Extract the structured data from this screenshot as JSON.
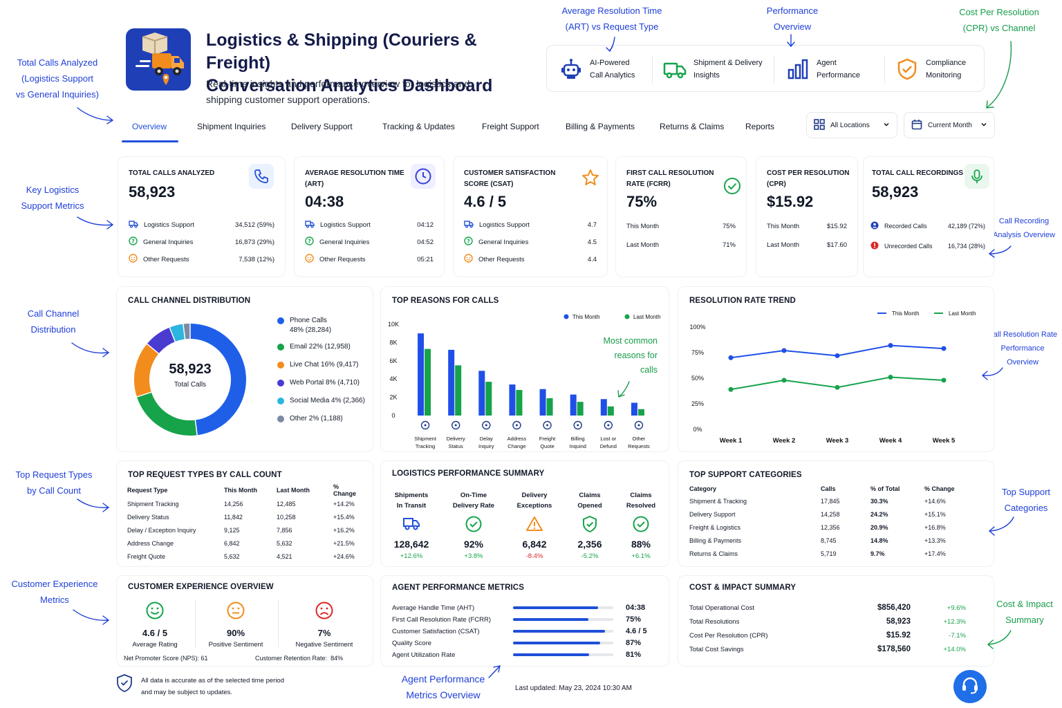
{
  "header": {
    "title_line1": "Logistics & Shipping (Couriers & Freight)",
    "title_line2": "Conversation Analytics Dashboard",
    "subtitle": "Real-time insights and performance overview for logistics and shipping customer support operations."
  },
  "features": [
    {
      "icon": "robot-icon",
      "line1": "AI-Powered",
      "line2": "Call Analytics"
    },
    {
      "icon": "truck-icon",
      "line1": "Shipment & Delivery",
      "line2": "Insights"
    },
    {
      "icon": "bar-chart-icon",
      "line1": "Agent",
      "line2": "Performance"
    },
    {
      "icon": "shield-check-icon",
      "line1": "Compliance",
      "line2": "Monitoring"
    }
  ],
  "annotations": {
    "art": [
      "Average Resolution Time",
      "(ART) vs Request Type"
    ],
    "perf": [
      "Performance",
      "Overview"
    ],
    "cpr": [
      "Cost Per Resolution",
      "(CPR) vs Channel"
    ],
    "total_calls": [
      "Total Calls Analyzed",
      "(Logistics Support",
      "vs General Inquiries)"
    ],
    "key_metrics": [
      "Key Logistics",
      "Support Metrics"
    ],
    "recording": [
      "Call Recording",
      "Analysis Overview"
    ],
    "channel": [
      "Call Channel",
      "Distribution"
    ],
    "rrate": [
      "Call Resolution Rate",
      "Performance",
      "Overview"
    ],
    "request_types": [
      "Top Request Types",
      "by Call Count"
    ],
    "support_cats": [
      "Top Support",
      "Categories"
    ],
    "cx": [
      "Customer Experience",
      "Metrics"
    ],
    "cost": [
      "Cost & Impact",
      "Summary"
    ],
    "agent": [
      "Agent Performance",
      "Metrics Overview"
    ],
    "common": [
      "Most common",
      "reasons for",
      "calls"
    ]
  },
  "tabs": [
    "Overview",
    "Shipment Inquiries",
    "Delivery Support",
    "Tracking & Updates",
    "Freight Support",
    "Billing & Payments",
    "Returns & Claims",
    "Reports"
  ],
  "filters": {
    "location": "All Locations",
    "period": "Current Month"
  },
  "kpis": {
    "total_calls": {
      "label": "TOTAL CALLS ANALYZED",
      "value": "58,923",
      "rows": [
        {
          "name": "Logistics Support",
          "value": "34,512 (59%)"
        },
        {
          "name": "General Inquiries",
          "value": "16,873 (29%)"
        },
        {
          "name": "Other Requests",
          "value": "7,538 (12%)"
        }
      ]
    },
    "art": {
      "label": "AVERAGE RESOLUTION TIME (ART)",
      "value": "04:38",
      "rows": [
        {
          "name": "Logistics Support",
          "value": "04:12"
        },
        {
          "name": "General Inquiries",
          "value": "04:52"
        },
        {
          "name": "Other Requests",
          "value": "05:21"
        }
      ]
    },
    "csat": {
      "label": "CUSTOMER SATISFACTION SCORE (CSAT)",
      "value": "4.6 / 5",
      "rows": [
        {
          "name": "Logistics Support",
          "value": "4.7"
        },
        {
          "name": "General Inquiries",
          "value": "4.5"
        },
        {
          "name": "Other Requests",
          "value": "4.4"
        }
      ]
    },
    "fcr": {
      "label": "FIRST CALL RESOLUTION RATE (FCRR)",
      "value": "75%",
      "rows": [
        {
          "name": "This Month",
          "value": "75%"
        },
        {
          "name": "Last Month",
          "value": "71%"
        }
      ]
    },
    "cpr": {
      "label": "COST PER RESOLUTION (CPR)",
      "value": "$15.92",
      "rows": [
        {
          "name": "This Month",
          "value": "$15.92"
        },
        {
          "name": "Last Month",
          "value": "$17.60"
        }
      ]
    },
    "recordings": {
      "label": "TOTAL CALL RECORDINGS",
      "value": "58,923",
      "rows": [
        {
          "name": "Recorded Calls",
          "value": "42,189 (72%)"
        },
        {
          "name": "Unrecorded Calls",
          "value": "16,734 (28%)"
        }
      ]
    }
  },
  "channel": {
    "title": "CALL CHANNEL DISTRIBUTION",
    "center_value": "58,923",
    "center_label": "Total Calls",
    "legend": [
      {
        "line1": "Phone Calls",
        "line2": "48% (28,284)",
        "color": "#1f5fe8"
      },
      {
        "line1": "Email 22% (12,958)",
        "line2": "",
        "color": "#16a34a"
      },
      {
        "line1": "Live Chat 16% (9,417)",
        "line2": "",
        "color": "#f28c1c"
      },
      {
        "line1": "Web Portal 8% (4,710)",
        "line2": "",
        "color": "#4a3bd1"
      },
      {
        "line1": "Social Media 4% (2,366)",
        "line2": "",
        "color": "#2bb5e0"
      },
      {
        "line1": "Other 2% (1,188)",
        "line2": "",
        "color": "#7c8aa5"
      }
    ]
  },
  "reasons_title": "TOP REASONS FOR CALLS",
  "trend_title": "RESOLUTION RATE TREND",
  "request_types": {
    "title": "TOP REQUEST TYPES BY CALL COUNT",
    "headers": [
      "Request Type",
      "This Month",
      "Last Month",
      "% Change"
    ],
    "rows": [
      [
        "Shipment Tracking",
        "14,256",
        "12,485",
        "+14.2%"
      ],
      [
        "Delivery Status",
        "11,842",
        "10,258",
        "+15.4%"
      ],
      [
        "Delay / Exception Inquiry",
        "9,125",
        "7,856",
        "+16.2%"
      ],
      [
        "Address Change",
        "6,842",
        "5,632",
        "+21.5%"
      ],
      [
        "Freight Quote",
        "5,632",
        "4,521",
        "+24.6%"
      ]
    ]
  },
  "logistics": {
    "title": "LOGISTICS PERFORMANCE SUMMARY",
    "items": [
      {
        "l1": "Shipments",
        "l2": "In Transit",
        "icon": "truck-icon",
        "value": "128,642",
        "change": "+12.6%",
        "dir": "pos"
      },
      {
        "l1": "On-Time",
        "l2": "Delivery Rate",
        "icon": "check-circle-icon",
        "value": "92%",
        "change": "+3.8%",
        "dir": "pos"
      },
      {
        "l1": "Delivery",
        "l2": "Exceptions",
        "icon": "warning-icon",
        "value": "6,842",
        "change": "-8.4%",
        "dir": "neg"
      },
      {
        "l1": "Claims",
        "l2": "Opened",
        "icon": "shield-check-icon",
        "value": "2,356",
        "change": "-5.2%",
        "dir": "pos"
      },
      {
        "l1": "Claims",
        "l2": "Resolved",
        "icon": "check-circle-icon",
        "value": "88%",
        "change": "+6.1%",
        "dir": "pos"
      }
    ]
  },
  "support_cats": {
    "title": "TOP SUPPORT CATEGORIES",
    "headers": [
      "Category",
      "Calls",
      "% of Total",
      "% Change"
    ],
    "rows": [
      [
        "Shipment & Tracking",
        "17,845",
        "30.3%",
        "+14.6%"
      ],
      [
        "Delivery Support",
        "14,258",
        "24.2%",
        "+15.1%"
      ],
      [
        "Freight & Logistics",
        "12,356",
        "20.9%",
        "+16.8%"
      ],
      [
        "Billing & Payments",
        "8,745",
        "14.8%",
        "+13.3%"
      ],
      [
        "Returns & Claims",
        "5,719",
        "9.7%",
        "+17.4%"
      ]
    ]
  },
  "cx": {
    "title": "CUSTOMER EXPERIENCE OVERVIEW",
    "items": [
      {
        "icon": "smile-icon",
        "value": "4.6 / 5",
        "label": "Average Rating",
        "color": "#16a34a"
      },
      {
        "icon": "neutral-face-icon",
        "value": "90%",
        "label": "Positive Sentiment",
        "color": "#f28c1c"
      },
      {
        "icon": "sad-face-icon",
        "value": "7%",
        "label": "Negative Sentiment",
        "color": "#dc2626"
      }
    ],
    "nps_label": "Net Promoter Score (NPS):",
    "nps": "61",
    "retention_label": "Customer Retention Rate:",
    "retention": "84%"
  },
  "agent": {
    "title": "AGENT PERFORMANCE METRICS",
    "rows": [
      {
        "name": "Average Handle Time (AHT)",
        "value": "04:38",
        "level": 0.85
      },
      {
        "name": "First Call Resolution Rate (FCRR)",
        "value": "75%",
        "level": 0.75
      },
      {
        "name": "Customer Satisfaction (CSAT)",
        "value": "4.6 / 5",
        "level": 0.92
      },
      {
        "name": "Quality Score",
        "value": "87%",
        "level": 0.87
      },
      {
        "name": "Agent Utilization Rate",
        "value": "81%",
        "level": 0.76
      }
    ]
  },
  "cost": {
    "title": "COST & IMPACT SUMMARY",
    "rows": [
      {
        "name": "Total Operational Cost",
        "value": "$856,420",
        "change": "+9.6%",
        "dir": "pos"
      },
      {
        "name": "Total Resolutions",
        "value": "58,923",
        "change": "+12.3%",
        "dir": "pos"
      },
      {
        "name": "Cost Per Resolution (CPR)",
        "value": "$15.92",
        "change": "-7.1%",
        "dir": "pos"
      },
      {
        "name": "Total Cost Savings",
        "value": "$178,560",
        "change": "+14.0%",
        "dir": "pos"
      }
    ]
  },
  "footer": {
    "note_line1": "All data is accurate as of the selected time period",
    "note_line2": "and may be subject to updates.",
    "updated": "Last updated:  May 23, 2024 10:30 AM"
  },
  "chart_data": [
    {
      "type": "bar",
      "title": "TOP REASONS FOR CALLS",
      "categories": [
        "Shipment Tracking",
        "Delivery Status",
        "Delay Inquiry",
        "Address Change",
        "Freight Quote",
        "Billing Inquiry",
        "Lost or Defund",
        "Other Requests"
      ],
      "category_lines": [
        [
          "Shipment",
          "Tracking"
        ],
        [
          "Delivery",
          "Status"
        ],
        [
          "Delay",
          "Inquiry"
        ],
        [
          "Address",
          "Change"
        ],
        [
          "Freight",
          "Quote"
        ],
        [
          "Billing",
          "Inquind"
        ],
        [
          "Lost or",
          "Defund"
        ],
        [
          "Other",
          "Requests"
        ]
      ],
      "series": [
        {
          "name": "This Month",
          "color": "#1f4fe8",
          "values": [
            9000,
            7200,
            4900,
            3400,
            2900,
            2300,
            1800,
            1400
          ]
        },
        {
          "name": "Last Month",
          "color": "#16a34a",
          "values": [
            7300,
            5500,
            3700,
            2800,
            1900,
            1500,
            1000,
            700
          ]
        }
      ],
      "yticks": [
        "0",
        "2K",
        "4K",
        "6K",
        "8K",
        "10K"
      ],
      "ylim": [
        0,
        10000
      ],
      "legend": "top-right"
    },
    {
      "type": "line",
      "title": "RESOLUTION RATE TREND",
      "categories": [
        "Week 1",
        "Week 2",
        "Week 3",
        "Week 4",
        "Week 5"
      ],
      "series": [
        {
          "name": "This Month",
          "color": "#1f4fe8",
          "values": [
            70,
            77,
            72,
            82,
            79
          ]
        },
        {
          "name": "Last Month",
          "color": "#16a34a",
          "values": [
            39,
            48,
            41,
            51,
            48
          ]
        }
      ],
      "yticks": [
        "0%",
        "25%",
        "50%",
        "75%",
        "100%"
      ],
      "ylim": [
        0,
        100
      ],
      "legend": "top-right"
    },
    {
      "type": "pie",
      "title": "CALL CHANNEL DISTRIBUTION",
      "categories": [
        "Phone Calls",
        "Email",
        "Live Chat",
        "Web Portal",
        "Social Media",
        "Other"
      ],
      "values": [
        48,
        22,
        16,
        8,
        4,
        2
      ]
    }
  ]
}
